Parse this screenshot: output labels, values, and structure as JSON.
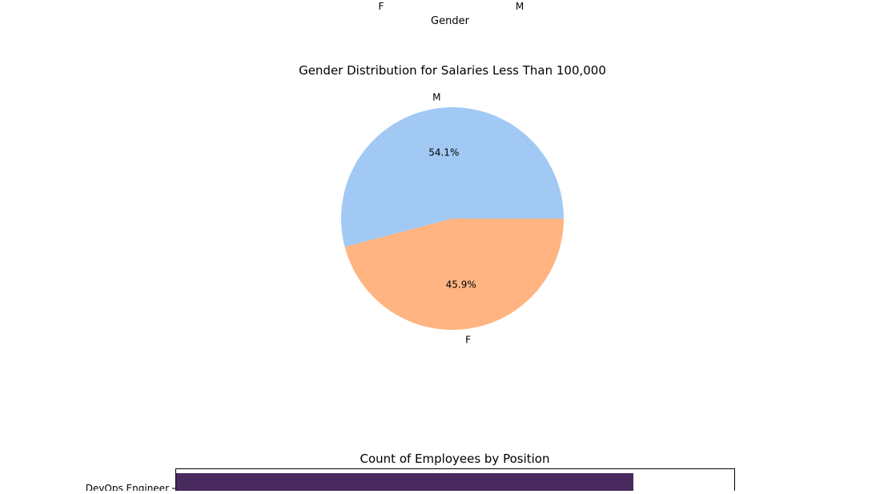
{
  "chart_data": [
    {
      "type": "bar",
      "xlabel": "Gender",
      "categories": [
        "F",
        "M"
      ],
      "note": "only the bottom edge of this chart is visible"
    },
    {
      "type": "pie",
      "title": "Gender Distribution for Salaries Less Than 100,000",
      "labels": [
        "M",
        "F"
      ],
      "values": [
        54.1,
        45.9
      ],
      "pct_labels": [
        "54.1%",
        "45.9%"
      ],
      "colors": [
        "#a1c9f4",
        "#ffb482"
      ],
      "startangle": 0
    },
    {
      "type": "bar",
      "orientation": "horizontal",
      "title": "Count of Employees by Position",
      "categories": [
        "DevOps Engineer"
      ],
      "bar_color": "#482a5f"
    }
  ]
}
